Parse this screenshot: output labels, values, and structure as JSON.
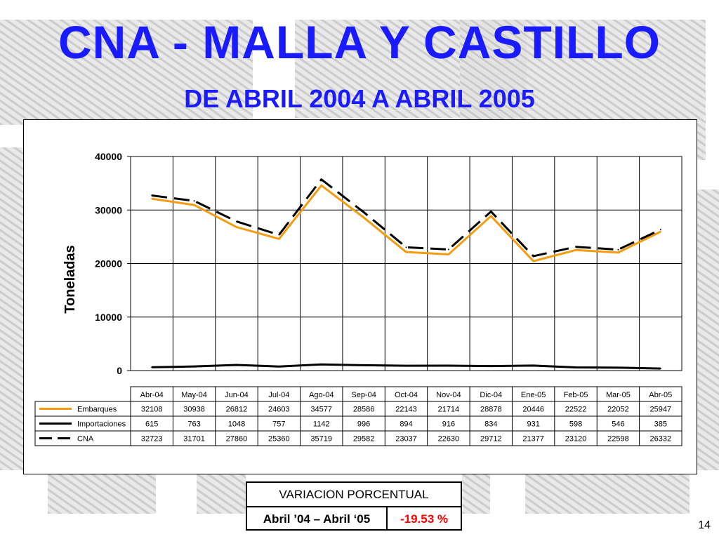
{
  "title": "CNA - MALLA Y CASTILLO",
  "subtitle": "DE ABRIL 2004 A ABRIL 2005",
  "colors": {
    "title": "#1a1aff",
    "embarques": "#f39c12",
    "importaciones": "#000000",
    "cna": "#000000",
    "variation_value": "#ff0000"
  },
  "chart_data": {
    "type": "line",
    "ylabel": "Toneladas",
    "xlabel": "",
    "ylim": [
      0,
      40000
    ],
    "yticks": [
      0,
      10000,
      20000,
      30000,
      40000
    ],
    "grid": true,
    "legend": "data-table",
    "categories": [
      "Abr-04",
      "May-04",
      "Jun-04",
      "Jul-04",
      "Ago-04",
      "Sep-04",
      "Oct-04",
      "Nov-04",
      "Dic-04",
      "Ene-05",
      "Feb-05",
      "Mar-05",
      "Abr-05"
    ],
    "series": [
      {
        "name": "Embarques",
        "style": "solid-orange",
        "values": [
          32108,
          30938,
          26812,
          24603,
          34577,
          28586,
          22143,
          21714,
          28878,
          20446,
          22522,
          22052,
          25947
        ]
      },
      {
        "name": "Importaciones",
        "style": "solid-black",
        "values": [
          615,
          763,
          1048,
          757,
          1142,
          996,
          894,
          916,
          834,
          931,
          598,
          546,
          385
        ]
      },
      {
        "name": "CNA",
        "style": "dashed-black",
        "values": [
          32723,
          31701,
          27860,
          25360,
          35719,
          29582,
          23037,
          22630,
          29712,
          21377,
          23120,
          22598,
          26332
        ]
      }
    ]
  },
  "variation_table": {
    "header": "VARIACION PORCENTUAL",
    "period": "Abril ’04 – Abril ‘05",
    "value": "-19.53 %"
  },
  "page_number": "14"
}
